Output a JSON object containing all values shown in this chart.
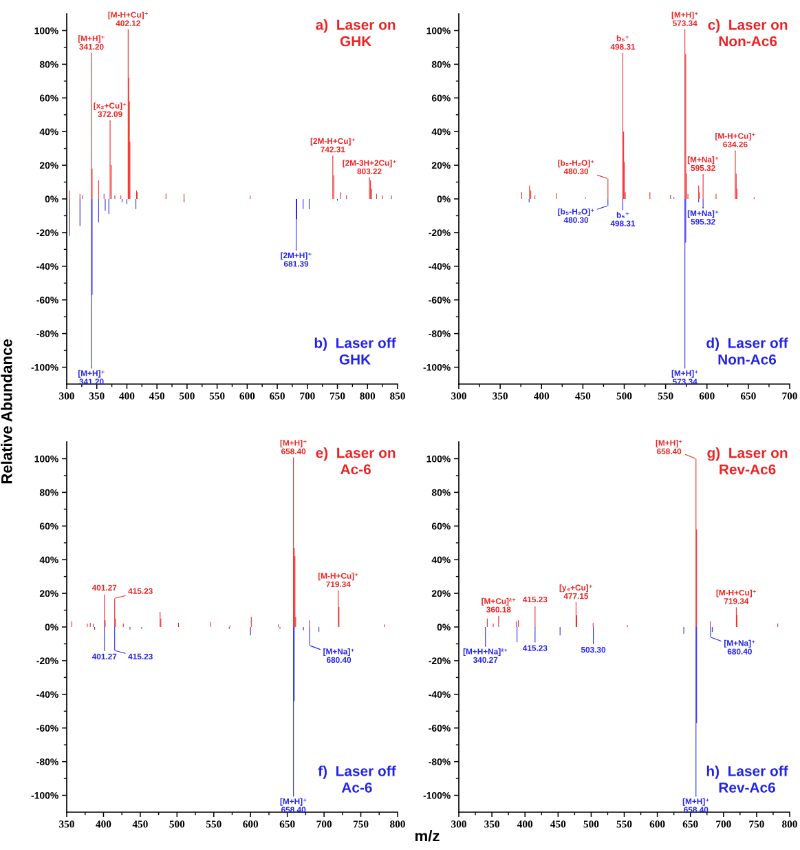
{
  "chart_data": [
    {
      "type": "bar",
      "ylabel": "Relative Abundance",
      "xlim": [
        300,
        850
      ],
      "ylim": [
        -110,
        110
      ],
      "xticks": [
        300,
        {
          "value": 325,
          "label": null
        },
        350,
        {
          "value": 375,
          "label": null
        },
        400,
        {
          "value": 425,
          "label": null
        },
        450,
        {
          "value": 475,
          "label": null
        },
        500,
        {
          "value": 525,
          "label": null
        },
        550,
        {
          "value": 575,
          "label": null
        },
        600,
        {
          "value": 625,
          "label": null
        },
        650,
        {
          "value": 675,
          "label": null
        },
        700,
        {
          "value": 725,
          "label": null
        },
        750,
        {
          "value": 775,
          "label": null
        },
        800,
        {
          "value": 825,
          "label": null
        },
        850
      ],
      "yticks": [
        {
          "value": -100,
          "label": "-100%"
        },
        {
          "value": -90,
          "label": null
        },
        {
          "value": -80,
          "label": "-80%"
        },
        {
          "value": -70,
          "label": null
        },
        {
          "value": -60,
          "label": "-60%"
        },
        {
          "value": -50,
          "label": null
        },
        {
          "value": -40,
          "label": "-40%"
        },
        {
          "value": -30,
          "label": null
        },
        {
          "value": -20,
          "label": "-20%"
        },
        {
          "value": -10,
          "label": null
        },
        {
          "value": 0,
          "label": "0%"
        },
        {
          "value": 10,
          "label": null
        },
        {
          "value": 20,
          "label": "20%"
        },
        {
          "value": 30,
          "label": null
        },
        {
          "value": 40,
          "label": "40%"
        },
        {
          "value": 50,
          "label": null
        },
        {
          "value": 60,
          "label": "60%"
        },
        {
          "value": 70,
          "label": null
        },
        {
          "value": 80,
          "label": "80%"
        },
        {
          "value": 90,
          "label": null
        },
        {
          "value": 100,
          "label": "100%"
        }
      ],
      "grid": false,
      "legend": "right",
      "series": [
        {
          "name": "a)  Laser on\nGHK",
          "color": "#ee2222",
          "x": [
            305,
            322,
            326,
            341.2,
            342.2,
            353,
            362,
            372.09,
            374,
            380,
            390,
            402.12,
            403.1,
            404.1,
            405.1,
            416,
            417,
            465,
            495,
            605,
            742.31,
            744,
            755,
            765,
            803.22,
            805,
            807,
            815,
            825,
            840
          ],
          "values": [
            5,
            3,
            2,
            86,
            18,
            11,
            3,
            46,
            20,
            2,
            2,
            100,
            72,
            58,
            34,
            5,
            4,
            3,
            3,
            2,
            25,
            14,
            4,
            2,
            12,
            11,
            6,
            3,
            2,
            2
          ]
        },
        {
          "name": "b)  Laser off\nGHK",
          "color": "#2222ee",
          "x": [
            305,
            322,
            341.2,
            342.2,
            353,
            364,
            370,
            392,
            400,
            415,
            495,
            681.39,
            682.4,
            693,
            703,
            750
          ],
          "values": [
            -22,
            -16,
            -100,
            -57,
            -14,
            -7,
            -9,
            -2,
            -3,
            -6,
            -2,
            -30,
            -12,
            -6,
            -6,
            -1
          ]
        }
      ],
      "annotations": [
        {
          "text": "[M+H]⁺\n341.20",
          "x": 341.2,
          "y": 86
        },
        {
          "text": "[M-H+Cu]⁺\n402.12",
          "x": 402.12,
          "y": 100
        },
        {
          "text": "[x₂+Cu]⁺\n372.09",
          "x": 372.09,
          "y": 46
        },
        {
          "text": "[2M-H+Cu]⁺\n742.31",
          "x": 742.31,
          "y": 25
        },
        {
          "text": "[2M-3H+2Cu]⁺\n803.22",
          "x": 803.22,
          "y": 12
        },
        {
          "text": "[M+H]⁺\n341.20",
          "x": 341.2,
          "y": -100
        },
        {
          "text": "[2M+H]⁺\n681.39",
          "x": 681.39,
          "y": -30
        }
      ]
    },
    {
      "type": "bar",
      "xlim": [
        300,
        700
      ],
      "ylim": [
        -110,
        110
      ],
      "xticks": [
        300,
        {
          "value": 325,
          "label": null
        },
        350,
        {
          "value": 375,
          "label": null
        },
        400,
        {
          "value": 425,
          "label": null
        },
        450,
        {
          "value": 475,
          "label": null
        },
        500,
        {
          "value": 525,
          "label": null
        },
        550,
        {
          "value": 575,
          "label": null
        },
        600,
        {
          "value": 625,
          "label": null
        },
        650,
        {
          "value": 675,
          "label": null
        },
        700
      ],
      "yticks": [
        {
          "value": -100,
          "label": "-100%"
        },
        {
          "value": -90,
          "label": null
        },
        {
          "value": -80,
          "label": "-80%"
        },
        {
          "value": -70,
          "label": null
        },
        {
          "value": -60,
          "label": "-60%"
        },
        {
          "value": -50,
          "label": null
        },
        {
          "value": -40,
          "label": "-40%"
        },
        {
          "value": -30,
          "label": null
        },
        {
          "value": -20,
          "label": "-20%"
        },
        {
          "value": -10,
          "label": null
        },
        {
          "value": 0,
          "label": "0%"
        },
        {
          "value": 10,
          "label": null
        },
        {
          "value": 20,
          "label": "20%"
        },
        {
          "value": 30,
          "label": null
        },
        {
          "value": 40,
          "label": "40%"
        },
        {
          "value": 50,
          "label": null
        },
        {
          "value": 60,
          "label": "60%"
        },
        {
          "value": 70,
          "label": null
        },
        {
          "value": 80,
          "label": "80%"
        },
        {
          "value": 90,
          "label": null
        },
        {
          "value": 100,
          "label": "100%"
        }
      ],
      "grid": false,
      "legend": "right",
      "series": [
        {
          "name": "c)  Laser on\nNon-Ac6",
          "color": "#ee2222",
          "x": [
            376,
            385.5,
            387,
            392,
            418,
            453,
            480.3,
            498.31,
            499.3,
            500.3,
            501.3,
            531,
            556,
            560,
            573.34,
            574.3,
            575.3,
            577,
            590,
            591,
            595.32,
            611,
            634.26,
            635.3,
            636.3,
            657
          ],
          "values": [
            4,
            8,
            5,
            2,
            3.5,
            1,
            12,
            86,
            40,
            22,
            4,
            4,
            2.5,
            1,
            100,
            86,
            15,
            3,
            8,
            4,
            14,
            3,
            28,
            15,
            6,
            1
          ]
        },
        {
          "name": "d)  Laser off\nNon-Ac6",
          "color": "#2222ee",
          "x": [
            385,
            480.3,
            498.31,
            573.34,
            574.3,
            590,
            595.32
          ],
          "values": [
            -2,
            -4,
            -6,
            -100,
            -26,
            -2,
            -5
          ]
        }
      ],
      "annotations": [
        {
          "text": "[M+H]⁺\n573.34",
          "x": 573.34,
          "y": 100
        },
        {
          "text": "b₅⁺\n498.31",
          "x": 498.31,
          "y": 86
        },
        {
          "text": "[M-H+Cu]⁺\n634.26",
          "x": 634.26,
          "y": 28
        },
        {
          "text": "[b₅-H₂O]⁺\n480.30",
          "x": 480.3,
          "y": 12
        },
        {
          "text": "[M+Na]⁺\n595.32",
          "x": 595.32,
          "y": 14
        },
        {
          "text": "[M+H]⁺\n573.34",
          "x": 573.34,
          "y": -100
        },
        {
          "text": "[b₅-H₂O]⁺\n480.30",
          "x": 480.3,
          "y": -4
        },
        {
          "text": "b₅⁺\n498.31",
          "x": 498.31,
          "y": -6
        },
        {
          "text": "[M+Na]⁺\n595.32",
          "x": 595.32,
          "y": -5
        }
      ]
    },
    {
      "type": "bar",
      "xlabel": "m/z",
      "xlim": [
        350,
        800
      ],
      "ylim": [
        -110,
        110
      ],
      "xticks": [
        350,
        {
          "value": 375,
          "label": null
        },
        400,
        {
          "value": 425,
          "label": null
        },
        450,
        {
          "value": 475,
          "label": null
        },
        500,
        {
          "value": 525,
          "label": null
        },
        550,
        {
          "value": 575,
          "label": null
        },
        600,
        {
          "value": 625,
          "label": null
        },
        650,
        {
          "value": 675,
          "label": null
        },
        700,
        {
          "value": 725,
          "label": null
        },
        750,
        {
          "value": 775,
          "label": null
        },
        800
      ],
      "yticks": [
        {
          "value": -100,
          "label": "-100%"
        },
        {
          "value": -90,
          "label": null
        },
        {
          "value": -80,
          "label": "-80%"
        },
        {
          "value": -70,
          "label": null
        },
        {
          "value": -60,
          "label": "-60%"
        },
        {
          "value": -50,
          "label": null
        },
        {
          "value": -40,
          "label": "-40%"
        },
        {
          "value": -30,
          "label": null
        },
        {
          "value": -20,
          "label": "-20%"
        },
        {
          "value": -10,
          "label": null
        },
        {
          "value": 0,
          "label": "0%"
        },
        {
          "value": 10,
          "label": null
        },
        {
          "value": 20,
          "label": "20%"
        },
        {
          "value": 30,
          "label": null
        },
        {
          "value": 40,
          "label": "40%"
        },
        {
          "value": 50,
          "label": null
        },
        {
          "value": 60,
          "label": "60%"
        },
        {
          "value": 70,
          "label": null
        },
        {
          "value": 80,
          "label": "80%"
        },
        {
          "value": 90,
          "label": null
        },
        {
          "value": 100,
          "label": "100%"
        }
      ],
      "grid": false,
      "legend": "right",
      "series": [
        {
          "name": "e)  Laser on\nAc-6",
          "color": "#ee2222",
          "x": [
            357,
            378,
            382,
            386,
            401.27,
            402.3,
            415.23,
            416.2,
            427,
            477,
            478,
            502,
            546,
            572,
            601,
            638,
            658.4,
            659.4,
            660.4,
            661.4,
            680,
            719.34,
            720.3,
            782
          ],
          "values": [
            3.5,
            2,
            2.5,
            2,
            19,
            4,
            17,
            5,
            2,
            9,
            5,
            2.5,
            3,
            1,
            6,
            1.5,
            100,
            47,
            42,
            6,
            4,
            21,
            12,
            1.5
          ]
        },
        {
          "name": "f)  Laser off\nAc-6",
          "color": "#2222ee",
          "x": [
            388,
            401.27,
            415.23,
            436,
            452,
            571,
            600,
            640,
            658.4,
            659.4,
            672,
            680.4,
            693
          ],
          "values": [
            -1.5,
            -14,
            -14,
            -1.5,
            -1,
            -1,
            -5,
            -1,
            -100,
            -44,
            -2,
            -11,
            -3
          ]
        }
      ],
      "annotations": [
        {
          "text": "[M+H]⁺\n658.40",
          "x": 658.4,
          "y": 100
        },
        {
          "text": "[M-H+Cu]⁺\n719.34",
          "x": 719.34,
          "y": 21
        },
        {
          "text": "401.27",
          "x": 401.27,
          "y": 19
        },
        {
          "text": "415.23",
          "x": 415.23,
          "y": 17
        },
        {
          "text": "[M+H]⁺\n658.40",
          "x": 658.4,
          "y": -100
        },
        {
          "text": "401.27",
          "x": 401.27,
          "y": -14
        },
        {
          "text": "415.23",
          "x": 415.23,
          "y": -14
        },
        {
          "text": "[M+Na]⁺\n680.40",
          "x": 680.4,
          "y": -11
        }
      ]
    },
    {
      "type": "bar",
      "xlim": [
        300,
        800
      ],
      "ylim": [
        -110,
        110
      ],
      "xticks": [
        300,
        {
          "value": 325,
          "label": null
        },
        350,
        {
          "value": 375,
          "label": null
        },
        400,
        {
          "value": 425,
          "label": null
        },
        450,
        {
          "value": 475,
          "label": null
        },
        500,
        {
          "value": 525,
          "label": null
        },
        550,
        {
          "value": 575,
          "label": null
        },
        600,
        {
          "value": 625,
          "label": null
        },
        650,
        {
          "value": 675,
          "label": null
        },
        700,
        {
          "value": 725,
          "label": null
        },
        750,
        {
          "value": 775,
          "label": null
        },
        800
      ],
      "yticks": [
        {
          "value": -100,
          "label": "-100%"
        },
        {
          "value": -90,
          "label": null
        },
        {
          "value": -80,
          "label": "-80%"
        },
        {
          "value": -70,
          "label": null
        },
        {
          "value": -60,
          "label": "-60%"
        },
        {
          "value": -50,
          "label": null
        },
        {
          "value": -40,
          "label": "-40%"
        },
        {
          "value": -30,
          "label": null
        },
        {
          "value": -20,
          "label": "-20%"
        },
        {
          "value": -10,
          "label": null
        },
        {
          "value": 0,
          "label": "0%"
        },
        {
          "value": 10,
          "label": null
        },
        {
          "value": 20,
          "label": "20%"
        },
        {
          "value": 30,
          "label": null
        },
        {
          "value": 40,
          "label": "40%"
        },
        {
          "value": 50,
          "label": null
        },
        {
          "value": 60,
          "label": "60%"
        },
        {
          "value": 70,
          "label": null
        },
        {
          "value": 80,
          "label": "80%"
        },
        {
          "value": 90,
          "label": null
        },
        {
          "value": 100,
          "label": "100%"
        }
      ],
      "grid": false,
      "legend": "right",
      "series": [
        {
          "name": "g)  Laser on\nRev-Ac6",
          "color": "#ee2222",
          "x": [
            343,
            352,
            360.18,
            387,
            390,
            415.23,
            477.15,
            478.2,
            503,
            555,
            658.4,
            659.4,
            680,
            719.34,
            720.3,
            782
          ],
          "values": [
            5,
            2,
            6,
            3.5,
            4,
            12,
            14,
            7,
            2.5,
            1,
            100,
            58,
            3.5,
            11,
            7,
            2
          ]
        },
        {
          "name": "h)  Laser off\nRev-Ac6",
          "color": "#2222ee",
          "x": [
            340.27,
            388,
            415.23,
            453,
            503.3,
            640,
            658.4,
            659.4,
            680.4,
            683
          ],
          "values": [
            -11,
            -9,
            -9,
            -5,
            -10,
            -4,
            -100,
            -57,
            -6,
            -3
          ]
        }
      ],
      "annotations": [
        {
          "text": "[M+H]⁺\n658.40",
          "x": 658.4,
          "y": 100
        },
        {
          "text": "[y₄+Cu]⁺\n477.15",
          "x": 477.15,
          "y": 14
        },
        {
          "text": "415.23",
          "x": 415.23,
          "y": 12
        },
        {
          "text": "[M+Cu]²⁺\n360.18",
          "x": 360.18,
          "y": 6
        },
        {
          "text": "[M-H+Cu]⁺\n719.34",
          "x": 719.34,
          "y": 11
        },
        {
          "text": "[M+H]⁺\n658.40",
          "x": 658.4,
          "y": -100
        },
        {
          "text": "[M+H+Na]²⁺\n340.27",
          "x": 340.27,
          "y": -11
        },
        {
          "text": "415.23",
          "x": 415.23,
          "y": -9
        },
        {
          "text": "503.30",
          "x": 503.3,
          "y": -10
        },
        {
          "text": "[M+Na]⁺\n680.40",
          "x": 680.4,
          "y": -6
        }
      ]
    }
  ]
}
